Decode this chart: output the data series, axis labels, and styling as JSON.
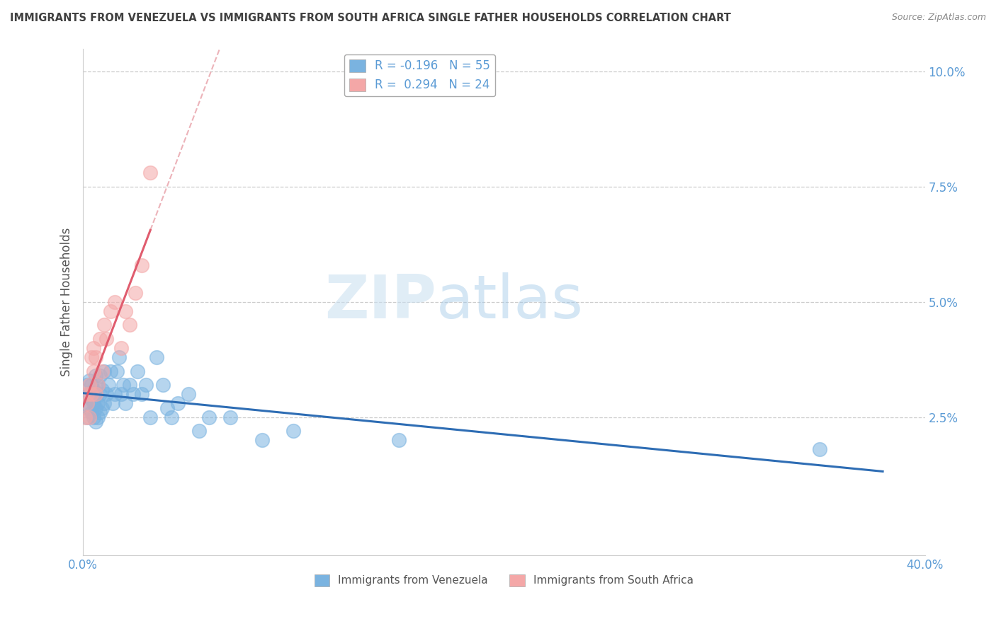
{
  "title": "IMMIGRANTS FROM VENEZUELA VS IMMIGRANTS FROM SOUTH AFRICA SINGLE FATHER HOUSEHOLDS CORRELATION CHART",
  "source": "Source: ZipAtlas.com",
  "xlabel_blue": "Immigrants from Venezuela",
  "xlabel_pink": "Immigrants from South Africa",
  "ylabel": "Single Father Households",
  "xlim": [
    0.0,
    0.4
  ],
  "ylim": [
    -0.005,
    0.105
  ],
  "yticks": [
    0.025,
    0.05,
    0.075,
    0.1
  ],
  "ytick_labels": [
    "2.5%",
    "5.0%",
    "7.5%",
    "10.0%"
  ],
  "xticks": [
    0.0,
    0.4
  ],
  "xtick_labels": [
    "0.0%",
    "40.0%"
  ],
  "R_blue": -0.196,
  "N_blue": 55,
  "R_pink": 0.294,
  "N_pink": 24,
  "color_blue": "#7ab3e0",
  "color_pink": "#f4a7a7",
  "color_blue_line": "#2e6db4",
  "color_pink_line": "#e05c6e",
  "color_pink_dashed": "#e8a0a8",
  "watermark_zip": "ZIP",
  "watermark_atlas": "atlas",
  "background_color": "#ffffff",
  "grid_color": "#c8c8c8",
  "title_color": "#404040",
  "axis_label_color": "#555555",
  "tick_label_color": "#5b9bd5",
  "legend_text_color": "#5b9bd5",
  "blue_scatter_x": [
    0.001,
    0.002,
    0.002,
    0.003,
    0.003,
    0.003,
    0.004,
    0.004,
    0.004,
    0.005,
    0.005,
    0.005,
    0.006,
    0.006,
    0.006,
    0.006,
    0.007,
    0.007,
    0.007,
    0.008,
    0.008,
    0.008,
    0.009,
    0.009,
    0.01,
    0.01,
    0.011,
    0.012,
    0.013,
    0.014,
    0.015,
    0.016,
    0.017,
    0.018,
    0.019,
    0.02,
    0.022,
    0.024,
    0.026,
    0.028,
    0.03,
    0.032,
    0.035,
    0.038,
    0.04,
    0.042,
    0.045,
    0.05,
    0.055,
    0.06,
    0.07,
    0.085,
    0.1,
    0.15,
    0.35
  ],
  "blue_scatter_y": [
    0.028,
    0.032,
    0.025,
    0.03,
    0.027,
    0.033,
    0.026,
    0.029,
    0.032,
    0.025,
    0.028,
    0.031,
    0.024,
    0.027,
    0.03,
    0.034,
    0.025,
    0.028,
    0.032,
    0.026,
    0.03,
    0.034,
    0.027,
    0.031,
    0.028,
    0.035,
    0.03,
    0.032,
    0.035,
    0.028,
    0.03,
    0.035,
    0.038,
    0.03,
    0.032,
    0.028,
    0.032,
    0.03,
    0.035,
    0.03,
    0.032,
    0.025,
    0.038,
    0.032,
    0.027,
    0.025,
    0.028,
    0.03,
    0.022,
    0.025,
    0.025,
    0.02,
    0.022,
    0.02,
    0.018
  ],
  "pink_scatter_x": [
    0.001,
    0.002,
    0.002,
    0.003,
    0.003,
    0.004,
    0.004,
    0.005,
    0.005,
    0.006,
    0.006,
    0.007,
    0.008,
    0.009,
    0.01,
    0.011,
    0.013,
    0.015,
    0.018,
    0.02,
    0.022,
    0.025,
    0.028,
    0.032
  ],
  "pink_scatter_y": [
    0.025,
    0.028,
    0.03,
    0.032,
    0.025,
    0.038,
    0.03,
    0.035,
    0.04,
    0.03,
    0.038,
    0.032,
    0.042,
    0.035,
    0.045,
    0.042,
    0.048,
    0.05,
    0.04,
    0.048,
    0.045,
    0.052,
    0.058,
    0.078
  ]
}
